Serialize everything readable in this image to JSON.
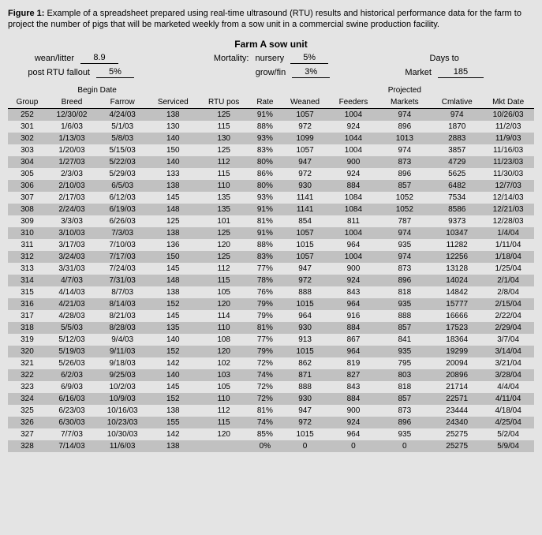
{
  "caption_bold": "Figure 1:",
  "caption_text": " Example of a spreadsheet prepared using real-time ultrasound (RTU) results and historical performance data for the farm to project the number of pigs that will be marketed weekly from a sow unit in a commercial swine production facility.",
  "title": "Farm A sow unit",
  "params": {
    "wean_litter_label": "wean/litter",
    "wean_litter": "8.9",
    "mortality_label": "Mortality:",
    "nursery_label": "nursery",
    "nursery": "5%",
    "days_to_label": "Days to",
    "fallout_label": "post RTU fallout",
    "fallout": "5%",
    "growfin_label": "grow/fin",
    "growfin": "3%",
    "market_label": "Market",
    "market": "185"
  },
  "headers": {
    "group": "Group",
    "begin_date": "Begin Date",
    "breed": "Breed",
    "farrow": "Farrow",
    "serviced": "Serviced",
    "rtu_pos": "RTU pos",
    "rate": "Rate",
    "weaned": "Weaned",
    "feeders": "Feeders",
    "projected": "Projected",
    "markets": "Markets",
    "cmlative": "Cmlative",
    "mkt_date": "Mkt Date"
  },
  "rows": [
    {
      "g": "252",
      "breed": "12/30/02",
      "farrow": "4/24/03",
      "serv": "138",
      "rtu": "125",
      "rate": "91%",
      "wean": "1057",
      "feed": "1004",
      "mkt": "974",
      "cum": "974",
      "date": "10/26/03"
    },
    {
      "g": "301",
      "breed": "1/6/03",
      "farrow": "5/1/03",
      "serv": "130",
      "rtu": "115",
      "rate": "88%",
      "wean": "972",
      "feed": "924",
      "mkt": "896",
      "cum": "1870",
      "date": "11/2/03"
    },
    {
      "g": "302",
      "breed": "1/13/03",
      "farrow": "5/8/03",
      "serv": "140",
      "rtu": "130",
      "rate": "93%",
      "wean": "1099",
      "feed": "1044",
      "mkt": "1013",
      "cum": "2883",
      "date": "11/9/03"
    },
    {
      "g": "303",
      "breed": "1/20/03",
      "farrow": "5/15/03",
      "serv": "150",
      "rtu": "125",
      "rate": "83%",
      "wean": "1057",
      "feed": "1004",
      "mkt": "974",
      "cum": "3857",
      "date": "11/16/03"
    },
    {
      "g": "304",
      "breed": "1/27/03",
      "farrow": "5/22/03",
      "serv": "140",
      "rtu": "112",
      "rate": "80%",
      "wean": "947",
      "feed": "900",
      "mkt": "873",
      "cum": "4729",
      "date": "11/23/03"
    },
    {
      "g": "305",
      "breed": "2/3/03",
      "farrow": "5/29/03",
      "serv": "133",
      "rtu": "115",
      "rate": "86%",
      "wean": "972",
      "feed": "924",
      "mkt": "896",
      "cum": "5625",
      "date": "11/30/03"
    },
    {
      "g": "306",
      "breed": "2/10/03",
      "farrow": "6/5/03",
      "serv": "138",
      "rtu": "110",
      "rate": "80%",
      "wean": "930",
      "feed": "884",
      "mkt": "857",
      "cum": "6482",
      "date": "12/7/03"
    },
    {
      "g": "307",
      "breed": "2/17/03",
      "farrow": "6/12/03",
      "serv": "145",
      "rtu": "135",
      "rate": "93%",
      "wean": "1141",
      "feed": "1084",
      "mkt": "1052",
      "cum": "7534",
      "date": "12/14/03"
    },
    {
      "g": "308",
      "breed": "2/24/03",
      "farrow": "6/19/03",
      "serv": "148",
      "rtu": "135",
      "rate": "91%",
      "wean": "1141",
      "feed": "1084",
      "mkt": "1052",
      "cum": "8586",
      "date": "12/21/03"
    },
    {
      "g": "309",
      "breed": "3/3/03",
      "farrow": "6/26/03",
      "serv": "125",
      "rtu": "101",
      "rate": "81%",
      "wean": "854",
      "feed": "811",
      "mkt": "787",
      "cum": "9373",
      "date": "12/28/03"
    },
    {
      "g": "310",
      "breed": "3/10/03",
      "farrow": "7/3/03",
      "serv": "138",
      "rtu": "125",
      "rate": "91%",
      "wean": "1057",
      "feed": "1004",
      "mkt": "974",
      "cum": "10347",
      "date": "1/4/04"
    },
    {
      "g": "311",
      "breed": "3/17/03",
      "farrow": "7/10/03",
      "serv": "136",
      "rtu": "120",
      "rate": "88%",
      "wean": "1015",
      "feed": "964",
      "mkt": "935",
      "cum": "11282",
      "date": "1/11/04"
    },
    {
      "g": "312",
      "breed": "3/24/03",
      "farrow": "7/17/03",
      "serv": "150",
      "rtu": "125",
      "rate": "83%",
      "wean": "1057",
      "feed": "1004",
      "mkt": "974",
      "cum": "12256",
      "date": "1/18/04"
    },
    {
      "g": "313",
      "breed": "3/31/03",
      "farrow": "7/24/03",
      "serv": "145",
      "rtu": "112",
      "rate": "77%",
      "wean": "947",
      "feed": "900",
      "mkt": "873",
      "cum": "13128",
      "date": "1/25/04"
    },
    {
      "g": "314",
      "breed": "4/7/03",
      "farrow": "7/31/03",
      "serv": "148",
      "rtu": "115",
      "rate": "78%",
      "wean": "972",
      "feed": "924",
      "mkt": "896",
      "cum": "14024",
      "date": "2/1/04"
    },
    {
      "g": "315",
      "breed": "4/14/03",
      "farrow": "8/7/03",
      "serv": "138",
      "rtu": "105",
      "rate": "76%",
      "wean": "888",
      "feed": "843",
      "mkt": "818",
      "cum": "14842",
      "date": "2/8/04"
    },
    {
      "g": "316",
      "breed": "4/21/03",
      "farrow": "8/14/03",
      "serv": "152",
      "rtu": "120",
      "rate": "79%",
      "wean": "1015",
      "feed": "964",
      "mkt": "935",
      "cum": "15777",
      "date": "2/15/04"
    },
    {
      "g": "317",
      "breed": "4/28/03",
      "farrow": "8/21/03",
      "serv": "145",
      "rtu": "114",
      "rate": "79%",
      "wean": "964",
      "feed": "916",
      "mkt": "888",
      "cum": "16666",
      "date": "2/22/04"
    },
    {
      "g": "318",
      "breed": "5/5/03",
      "farrow": "8/28/03",
      "serv": "135",
      "rtu": "110",
      "rate": "81%",
      "wean": "930",
      "feed": "884",
      "mkt": "857",
      "cum": "17523",
      "date": "2/29/04"
    },
    {
      "g": "319",
      "breed": "5/12/03",
      "farrow": "9/4/03",
      "serv": "140",
      "rtu": "108",
      "rate": "77%",
      "wean": "913",
      "feed": "867",
      "mkt": "841",
      "cum": "18364",
      "date": "3/7/04"
    },
    {
      "g": "320",
      "breed": "5/19/03",
      "farrow": "9/11/03",
      "serv": "152",
      "rtu": "120",
      "rate": "79%",
      "wean": "1015",
      "feed": "964",
      "mkt": "935",
      "cum": "19299",
      "date": "3/14/04"
    },
    {
      "g": "321",
      "breed": "5/26/03",
      "farrow": "9/18/03",
      "serv": "142",
      "rtu": "102",
      "rate": "72%",
      "wean": "862",
      "feed": "819",
      "mkt": "795",
      "cum": "20094",
      "date": "3/21/04"
    },
    {
      "g": "322",
      "breed": "6/2/03",
      "farrow": "9/25/03",
      "serv": "140",
      "rtu": "103",
      "rate": "74%",
      "wean": "871",
      "feed": "827",
      "mkt": "803",
      "cum": "20896",
      "date": "3/28/04"
    },
    {
      "g": "323",
      "breed": "6/9/03",
      "farrow": "10/2/03",
      "serv": "145",
      "rtu": "105",
      "rate": "72%",
      "wean": "888",
      "feed": "843",
      "mkt": "818",
      "cum": "21714",
      "date": "4/4/04"
    },
    {
      "g": "324",
      "breed": "6/16/03",
      "farrow": "10/9/03",
      "serv": "152",
      "rtu": "110",
      "rate": "72%",
      "wean": "930",
      "feed": "884",
      "mkt": "857",
      "cum": "22571",
      "date": "4/11/04"
    },
    {
      "g": "325",
      "breed": "6/23/03",
      "farrow": "10/16/03",
      "serv": "138",
      "rtu": "112",
      "rate": "81%",
      "wean": "947",
      "feed": "900",
      "mkt": "873",
      "cum": "23444",
      "date": "4/18/04"
    },
    {
      "g": "326",
      "breed": "6/30/03",
      "farrow": "10/23/03",
      "serv": "155",
      "rtu": "115",
      "rate": "74%",
      "wean": "972",
      "feed": "924",
      "mkt": "896",
      "cum": "24340",
      "date": "4/25/04"
    },
    {
      "g": "327",
      "breed": "7/7/03",
      "farrow": "10/30/03",
      "serv": "142",
      "rtu": "120",
      "rate": "85%",
      "wean": "1015",
      "feed": "964",
      "mkt": "935",
      "cum": "25275",
      "date": "5/2/04"
    },
    {
      "g": "328",
      "breed": "7/14/03",
      "farrow": "11/6/03",
      "serv": "138",
      "rtu": "",
      "rate": "0%",
      "wean": "0",
      "feed": "0",
      "mkt": "0",
      "cum": "25275",
      "date": "5/9/04"
    }
  ]
}
